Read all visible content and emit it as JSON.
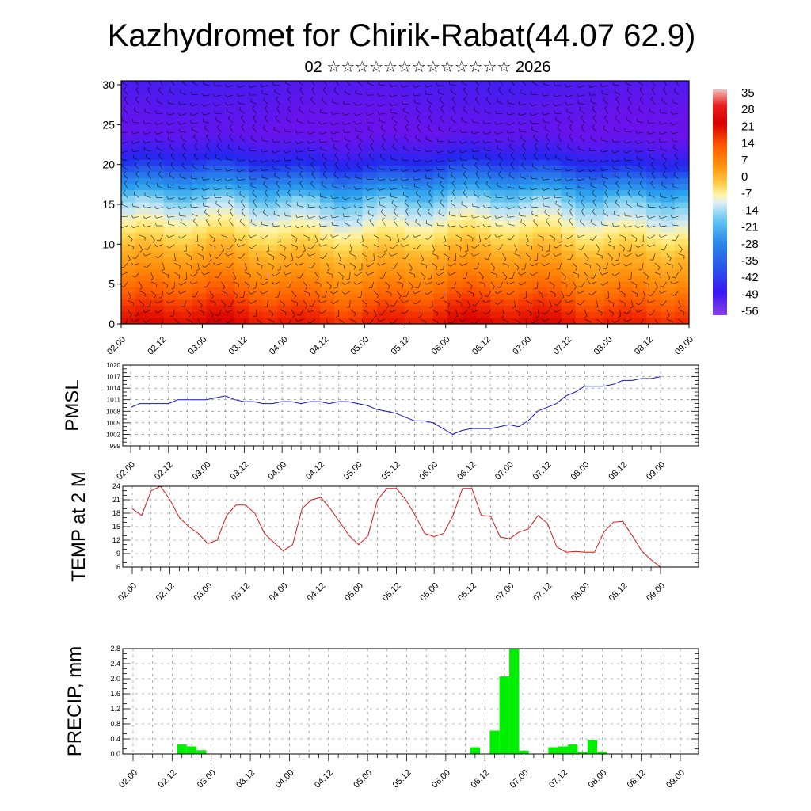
{
  "title": "Kazhydromet for Chirik-Rabat(44.07 62.9)",
  "subtitle": "02 ☆☆☆☆☆☆☆☆☆☆☆☆☆ 2026",
  "time_ticks": [
    "02.00",
    "02.12",
    "03.00",
    "03.12",
    "04.00",
    "04.12",
    "05.00",
    "05.12",
    "06.00",
    "06.12",
    "07.00",
    "07.12",
    "08.00",
    "08.12",
    "09.00"
  ],
  "colorbar_labels": [
    "35",
    "28",
    "21",
    "14",
    "7",
    "0",
    "-7",
    "-14",
    "-21",
    "-28",
    "-35",
    "-42",
    "-49",
    "-56"
  ],
  "colors": {
    "pmsl_line": "#1515c8",
    "temp_line": "#d41818",
    "precip_bar": "#00ee00"
  },
  "chart_data": [
    {
      "type": "heatmap",
      "name": "vertical-cross-section",
      "title": "Kazhydromet for Chirik-Rabat(44.07 62.9)",
      "subtitle": "02 ☆☆☆☆☆☆☆☆☆☆☆☆☆ 2026",
      "ylabel": "",
      "ylim": [
        0,
        30.5
      ],
      "y_ticks": [
        "0",
        "5",
        "10",
        "15",
        "20",
        "25",
        "30"
      ],
      "x_ticks": [
        "02.00",
        "02.12",
        "03.00",
        "03.12",
        "04.00",
        "04.12",
        "05.00",
        "05.12",
        "06.00",
        "06.12",
        "07.00",
        "07.12",
        "08.00",
        "08.12",
        "09.00"
      ],
      "legend": [
        "35",
        "28",
        "21",
        "14",
        "7",
        "0",
        "-7",
        "-14",
        "-21",
        "-28",
        "-35",
        "-42",
        "-49",
        "-56"
      ],
      "level_temperatures": {
        "levels": [
          0,
          3,
          6,
          9,
          12,
          15,
          18,
          21,
          24,
          27,
          30.5
        ],
        "temperatures": [
          24,
          17,
          10,
          3,
          -7,
          -16,
          -32,
          -45,
          -58,
          -55,
          -50
        ]
      }
    },
    {
      "type": "line",
      "name": "pmsl",
      "ylabel": "PMSL",
      "ylim": [
        999,
        1020
      ],
      "y_ticks": [
        "999",
        "1002",
        "1005",
        "1008",
        "1011",
        "1014",
        "1017",
        "1020"
      ],
      "x_ticks": [
        "02.00",
        "02.12",
        "03.00",
        "03.12",
        "04.00",
        "04.12",
        "05.00",
        "05.12",
        "06.00",
        "06.12",
        "07.00",
        "07.12",
        "08.00",
        "08.12",
        "09.00"
      ],
      "x": [
        0,
        0.125,
        0.25,
        0.375,
        0.5,
        0.625,
        0.75,
        0.875,
        1,
        1.125,
        1.25,
        1.375,
        1.5,
        1.625,
        1.75,
        1.875,
        2,
        2.125,
        2.25,
        2.375,
        2.5,
        2.625,
        2.75,
        2.875,
        3,
        3.125,
        3.25,
        3.375,
        3.5,
        3.625,
        3.75,
        3.875,
        4,
        4.125,
        4.25,
        4.375,
        4.5,
        4.625,
        4.75,
        4.875,
        5,
        5.125,
        5.25,
        5.375,
        5.5,
        5.625,
        5.75,
        5.875,
        6,
        6.125,
        6.25,
        6.375,
        6.5,
        6.625,
        6.75,
        6.875,
        7
      ],
      "values": [
        1009,
        1010,
        1010,
        1010,
        1010,
        1011,
        1011,
        1011,
        1011,
        1011.5,
        1012,
        1011,
        1010.5,
        1010.5,
        1010,
        1010,
        1010.5,
        1010.5,
        1010,
        1010.5,
        1010.5,
        1010,
        1010.5,
        1010.5,
        1010,
        1009.5,
        1008.5,
        1008,
        1007.5,
        1006.5,
        1005.5,
        1005.5,
        1005,
        1003.5,
        1002,
        1003,
        1003.5,
        1003.5,
        1003.5,
        1004,
        1004.5,
        1004,
        1005.5,
        1008,
        1009,
        1010,
        1012,
        1013,
        1014.5,
        1014.5,
        1014.5,
        1015,
        1016,
        1016,
        1016.5,
        1016.5,
        1017
      ]
    },
    {
      "type": "line",
      "name": "temp-2m",
      "ylabel": "TEMP at 2 M",
      "ylim": [
        6,
        24
      ],
      "y_ticks": [
        "6",
        "9",
        "12",
        "15",
        "18",
        "21",
        "24"
      ],
      "x_ticks": [
        "02.00",
        "02.12",
        "03.00",
        "03.12",
        "04.00",
        "04.12",
        "05.00",
        "05.12",
        "06.00",
        "06.12",
        "07.00",
        "07.12",
        "08.00",
        "08.12",
        "09.00"
      ],
      "x": [
        0,
        0.125,
        0.25,
        0.375,
        0.5,
        0.625,
        0.75,
        0.875,
        1,
        1.125,
        1.25,
        1.375,
        1.5,
        1.625,
        1.75,
        1.875,
        2,
        2.125,
        2.25,
        2.375,
        2.5,
        2.625,
        2.75,
        2.875,
        3,
        3.125,
        3.25,
        3.375,
        3.5,
        3.625,
        3.75,
        3.875,
        4,
        4.125,
        4.25,
        4.375,
        4.5,
        4.625,
        4.75,
        4.875,
        5,
        5.125,
        5.25,
        5.375,
        5.5,
        5.625,
        5.75,
        5.875,
        6,
        6.125,
        6.25,
        6.375,
        6.5,
        6.625,
        6.75,
        6.875,
        7
      ],
      "values": [
        19,
        17.5,
        23,
        24,
        21,
        17,
        15,
        13.5,
        11.2,
        12,
        17.5,
        19.8,
        19.8,
        18,
        13.5,
        11.5,
        9.6,
        11,
        19,
        21,
        21.5,
        19,
        16,
        13,
        11,
        13,
        21,
        23.5,
        23.5,
        21,
        17.5,
        13.5,
        12.8,
        13.5,
        17.5,
        23.5,
        23.5,
        17.5,
        17.3,
        12.7,
        12.3,
        13.8,
        14.5,
        17.5,
        15.8,
        10.5,
        9.3,
        9.5,
        9.3,
        9.3,
        13.8,
        16,
        16.2,
        13,
        9.6,
        7.6,
        6
      ]
    },
    {
      "type": "bar",
      "name": "precip",
      "ylabel": "PRECIP, mm",
      "ylim": [
        0,
        2.8
      ],
      "y_ticks": [
        "0.0",
        "0.4",
        "0.8",
        "1.2",
        "1.6",
        "2.0",
        "2.4",
        "2.8"
      ],
      "x_ticks": [
        "02.00",
        "02.12",
        "03.00",
        "03.12",
        "04.00",
        "04.12",
        "05.00",
        "05.12",
        "06.00",
        "06.12",
        "07.00",
        "07.12",
        "08.00",
        "08.12",
        "09.00"
      ],
      "x": [
        0.625,
        0.75,
        0.875,
        4.375,
        4.625,
        4.75,
        4.875,
        5,
        5.375,
        5.5,
        5.625,
        5.75,
        5.875,
        6
      ],
      "values": [
        0.25,
        0.2,
        0.1,
        0.18,
        0.62,
        2.06,
        2.8,
        0.09,
        0.18,
        0.2,
        0.25,
        0.05,
        0.38,
        0.06
      ]
    }
  ]
}
